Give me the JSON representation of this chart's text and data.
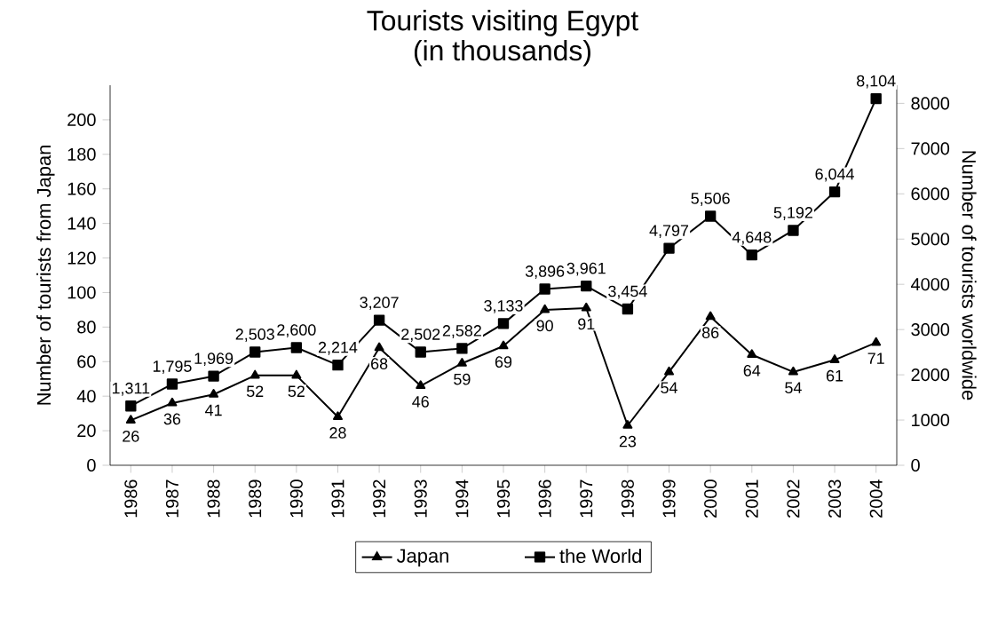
{
  "chart_data": {
    "type": "line",
    "title": "Tourists visiting Egypt",
    "subtitle": "(in thousands)",
    "ylabel": "Number of tourists from Japan",
    "y2label": "Number of tourists worldwide",
    "categories": [
      "1986",
      "1987",
      "1988",
      "1989",
      "1990",
      "1991",
      "1992",
      "1993",
      "1994",
      "1995",
      "1996",
      "1997",
      "1998",
      "1999",
      "2000",
      "2001",
      "2002",
      "2003",
      "2004"
    ],
    "series": [
      {
        "name": "Japan",
        "color": "#000000",
        "marker": "triangle",
        "values": [
          26,
          36,
          41,
          52,
          52,
          28,
          68,
          46,
          59,
          69,
          90,
          91,
          23,
          54,
          86,
          64,
          54,
          61,
          71
        ],
        "value_labels": [
          "26",
          "36",
          "41",
          "52",
          "52",
          "28",
          "68",
          "46",
          "59",
          "69",
          "90",
          "91",
          "23",
          "54",
          "86",
          "64",
          "54",
          "61",
          "71"
        ]
      },
      {
        "name": "the World",
        "color": "#000000",
        "marker": "square",
        "axis": "y2",
        "values": [
          1311,
          1795,
          1969,
          2503,
          2600,
          2214,
          3207,
          2502,
          2582,
          3133,
          3896,
          3961,
          3454,
          4797,
          5506,
          4648,
          5192,
          6044,
          8104
        ],
        "value_labels": [
          "1,311",
          "1,795",
          "1,969",
          "2,503",
          "2,600",
          "2,214",
          "3,207",
          "2,502",
          "2,582",
          "3,133",
          "3,896",
          "3,961",
          "3,454",
          "4,797",
          "5,506",
          "4,648",
          "5,192",
          "6,044",
          "8,104"
        ]
      }
    ],
    "ylim": [
      0,
      220
    ],
    "yticks": [
      0,
      20,
      40,
      60,
      80,
      100,
      120,
      140,
      160,
      180,
      200
    ],
    "y2lim": [
      0,
      8400
    ],
    "y2ticks": [
      0,
      1000,
      2000,
      3000,
      4000,
      5000,
      6000,
      7000,
      8000
    ],
    "legend": "bottom",
    "grid": false
  }
}
